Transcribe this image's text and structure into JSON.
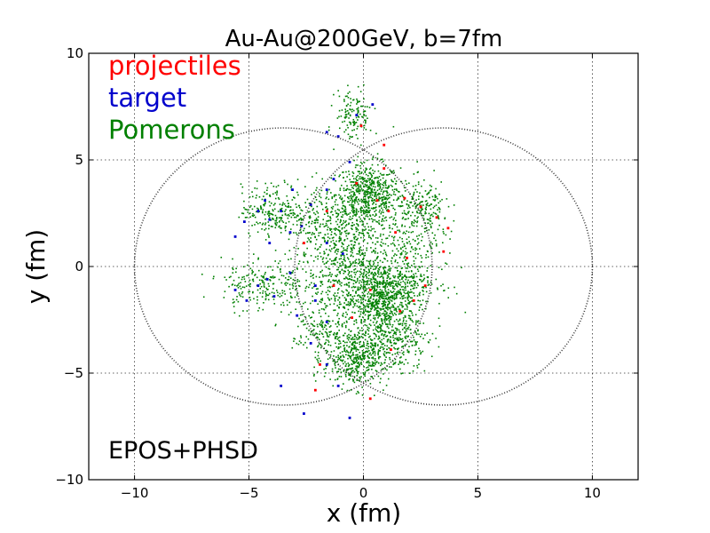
{
  "chart_data": {
    "type": "scatter",
    "title": "Au-Au@200GeV, b=7fm",
    "xlabel": "x (fm)",
    "ylabel": "y (fm)",
    "xlim": [
      -12,
      12
    ],
    "ylim": [
      -10,
      10
    ],
    "xticks": [
      -10,
      -5,
      0,
      5,
      10
    ],
    "yticks": [
      -10,
      -5,
      0,
      5,
      10
    ],
    "xtick_labels": [
      "−10",
      "−5",
      "0",
      "5",
      "10"
    ],
    "ytick_labels": [
      "−10",
      "−5",
      "0",
      "5",
      "10"
    ],
    "grid": true,
    "legend_position": "top-left",
    "annotation": "EPOS+PHSD",
    "nucleus_circles": [
      {
        "cx": -3.5,
        "cy": 0,
        "r": 6.5
      },
      {
        "cx": 3.5,
        "cy": 0,
        "r": 6.5
      }
    ],
    "series": [
      {
        "name": "projectiles",
        "color": "#ff0000",
        "points": [
          [
            -0.3,
            3.9
          ],
          [
            0.6,
            3.1
          ],
          [
            1.1,
            2.6
          ],
          [
            0.9,
            4.6
          ],
          [
            1.8,
            3.2
          ],
          [
            2.5,
            2.8
          ],
          [
            3.2,
            2.3
          ],
          [
            3.5,
            0.7
          ],
          [
            2.7,
            -0.9
          ],
          [
            1.6,
            -2.1
          ],
          [
            0.3,
            -1.1
          ],
          [
            -1.3,
            -0.9
          ],
          [
            -1.6,
            2.6
          ],
          [
            -1.9,
            -4.6
          ],
          [
            -2.1,
            -5.8
          ],
          [
            -0.5,
            -2.4
          ],
          [
            1.2,
            -3.9
          ],
          [
            1.9,
            0.4
          ],
          [
            0.9,
            5.7
          ],
          [
            -0.1,
            6.6
          ],
          [
            2.2,
            -1.6
          ],
          [
            -2.6,
            1.1
          ],
          [
            0.3,
            -6.2
          ],
          [
            1.4,
            1.6
          ],
          [
            3.7,
            1.8
          ]
        ]
      },
      {
        "name": "target",
        "color": "#0000cc",
        "points": [
          [
            -4.3,
            3.1
          ],
          [
            -4.6,
            2.6
          ],
          [
            -5.2,
            2.1
          ],
          [
            -5.6,
            1.4
          ],
          [
            -4.1,
            1.1
          ],
          [
            -3.6,
            2.6
          ],
          [
            -3.2,
            1.6
          ],
          [
            -5.6,
            -1.1
          ],
          [
            -5.1,
            -1.6
          ],
          [
            -4.2,
            -0.6
          ],
          [
            -3.9,
            -1.4
          ],
          [
            -3.2,
            -0.3
          ],
          [
            -2.7,
            1.9
          ],
          [
            -2.3,
            2.9
          ],
          [
            -1.6,
            3.6
          ],
          [
            -1.3,
            4.1
          ],
          [
            -0.6,
            4.9
          ],
          [
            -2.1,
            -0.9
          ],
          [
            -1.6,
            -2.6
          ],
          [
            -2.3,
            -3.6
          ],
          [
            -1.6,
            -4.6
          ],
          [
            -1.1,
            -5.6
          ],
          [
            -0.6,
            -7.1
          ],
          [
            -2.6,
            -6.9
          ],
          [
            -3.6,
            -5.6
          ],
          [
            -1.1,
            6.1
          ],
          [
            -1.6,
            6.3
          ],
          [
            -0.3,
            7.1
          ],
          [
            0.4,
            7.6
          ],
          [
            -2.1,
            -1.6
          ],
          [
            -3.1,
            3.6
          ],
          [
            -4.6,
            -0.9
          ],
          [
            -0.9,
            0.6
          ],
          [
            -1.6,
            1.1
          ],
          [
            -2.9,
            -2.3
          ],
          [
            -4.1,
            2.2
          ]
        ]
      },
      {
        "name": "Pomerons",
        "color": "#008000",
        "clusters": [
          {
            "x": 0.2,
            "y": 3.4,
            "sx": 0.7,
            "sy": 0.7,
            "n": 560
          },
          {
            "x": 0.8,
            "y": -1.7,
            "sx": 0.7,
            "sy": 0.9,
            "n": 620
          },
          {
            "x": -0.3,
            "y": -4.3,
            "sx": 0.7,
            "sy": 0.7,
            "n": 440
          },
          {
            "x": -1.6,
            "y": 1.9,
            "sx": 0.9,
            "sy": 1.0,
            "n": 300
          },
          {
            "x": -0.8,
            "y": -0.8,
            "sx": 1.0,
            "sy": 1.0,
            "n": 380
          },
          {
            "x": -3.9,
            "y": 2.6,
            "sx": 0.7,
            "sy": 0.6,
            "n": 220
          },
          {
            "x": -4.4,
            "y": -0.9,
            "sx": 0.9,
            "sy": 0.6,
            "n": 230
          },
          {
            "x": 2.6,
            "y": 2.6,
            "sx": 0.6,
            "sy": 0.7,
            "n": 210
          },
          {
            "x": 1.9,
            "y": -0.6,
            "sx": 0.8,
            "sy": 0.9,
            "n": 260
          },
          {
            "x": -0.4,
            "y": 7.1,
            "sx": 0.4,
            "sy": 0.6,
            "n": 130
          },
          {
            "x": -1.9,
            "y": -3.1,
            "sx": 0.6,
            "sy": 0.7,
            "n": 150
          },
          {
            "x": 0.5,
            "y": 1.0,
            "sx": 1.3,
            "sy": 1.3,
            "n": 420
          },
          {
            "x": 1.4,
            "y": -3.6,
            "sx": 0.8,
            "sy": 0.6,
            "n": 200
          }
        ]
      }
    ]
  }
}
